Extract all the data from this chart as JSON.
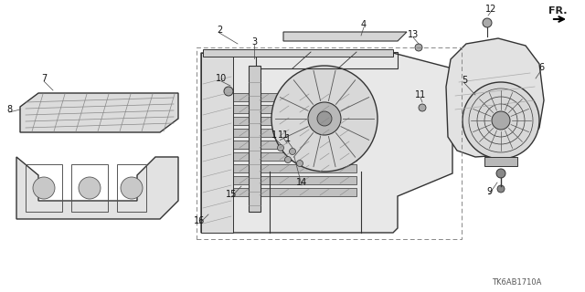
{
  "bg_color": "#ffffff",
  "diagram_code": "TK6AB1710A",
  "fr_label": "FR.",
  "line_color": "#333333",
  "text_color": "#222222"
}
